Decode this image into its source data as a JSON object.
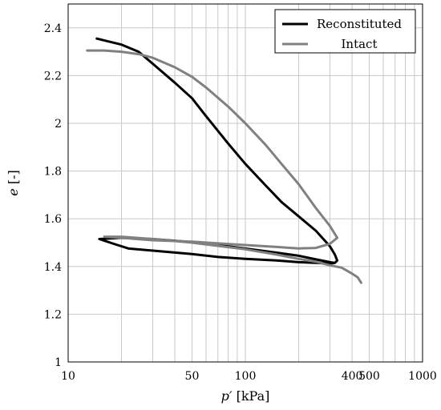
{
  "chart_data": {
    "type": "line",
    "title": "",
    "x_scale": "log",
    "xlim": [
      10,
      1000
    ],
    "ylim": [
      1,
      2.5
    ],
    "x_ticks": [
      10,
      50,
      100,
      400,
      500,
      1000
    ],
    "x_tick_labels": [
      "10",
      "50",
      "100",
      "400",
      "500",
      "1000"
    ],
    "y_ticks": [
      1,
      1.2,
      1.4,
      1.6,
      1.8,
      2,
      2.2,
      2.4
    ],
    "y_tick_labels": [
      "1",
      "1.2",
      "1.4",
      "1.6",
      "1.8",
      "2",
      "2.2",
      "2.4"
    ],
    "xlabel_var": "p′",
    "xlabel_unit": "[kPa]",
    "ylabel_var": "e",
    "ylabel_unit": "[-]",
    "grid": true,
    "legend_position": "top-right",
    "series": [
      {
        "name": "Reconstituted",
        "color": "#000000",
        "points": [
          [
            14.5,
            2.355
          ],
          [
            20,
            2.33
          ],
          [
            25,
            2.3
          ],
          [
            30,
            2.25
          ],
          [
            40,
            2.17
          ],
          [
            50,
            2.105
          ],
          [
            60,
            2.03
          ],
          [
            80,
            1.915
          ],
          [
            100,
            1.83
          ],
          [
            130,
            1.74
          ],
          [
            160,
            1.67
          ],
          [
            200,
            1.61
          ],
          [
            250,
            1.55
          ],
          [
            300,
            1.485
          ],
          [
            320,
            1.45
          ],
          [
            330,
            1.425
          ],
          [
            320,
            1.415
          ],
          [
            300,
            1.412
          ],
          [
            250,
            1.415
          ],
          [
            200,
            1.418
          ],
          [
            150,
            1.425
          ],
          [
            100,
            1.432
          ],
          [
            70,
            1.44
          ],
          [
            50,
            1.452
          ],
          [
            35,
            1.462
          ],
          [
            22,
            1.475
          ],
          [
            19,
            1.49
          ],
          [
            15,
            1.515
          ],
          [
            20,
            1.52
          ],
          [
            30,
            1.515
          ],
          [
            50,
            1.502
          ],
          [
            70,
            1.49
          ],
          [
            100,
            1.475
          ],
          [
            150,
            1.458
          ],
          [
            200,
            1.445
          ],
          [
            250,
            1.43
          ],
          [
            300,
            1.418
          ],
          [
            320,
            1.415
          ]
        ]
      },
      {
        "name": "Intact",
        "color": "#808080",
        "points": [
          [
            12.8,
            2.305
          ],
          [
            16,
            2.305
          ],
          [
            20,
            2.3
          ],
          [
            25,
            2.29
          ],
          [
            30,
            2.275
          ],
          [
            40,
            2.235
          ],
          [
            50,
            2.195
          ],
          [
            60,
            2.15
          ],
          [
            80,
            2.07
          ],
          [
            100,
            2.0
          ],
          [
            130,
            1.91
          ],
          [
            160,
            1.83
          ],
          [
            200,
            1.745
          ],
          [
            250,
            1.645
          ],
          [
            300,
            1.57
          ],
          [
            330,
            1.52
          ],
          [
            300,
            1.495
          ],
          [
            250,
            1.478
          ],
          [
            200,
            1.476
          ],
          [
            150,
            1.482
          ],
          [
            100,
            1.49
          ],
          [
            70,
            1.497
          ],
          [
            50,
            1.504
          ],
          [
            30,
            1.51
          ],
          [
            20,
            1.52
          ],
          [
            16,
            1.525
          ],
          [
            20,
            1.525
          ],
          [
            30,
            1.515
          ],
          [
            50,
            1.5
          ],
          [
            100,
            1.472
          ],
          [
            150,
            1.45
          ],
          [
            200,
            1.432
          ],
          [
            250,
            1.42
          ],
          [
            300,
            1.405
          ],
          [
            350,
            1.395
          ],
          [
            400,
            1.37
          ],
          [
            430,
            1.355
          ],
          [
            450,
            1.332
          ]
        ]
      }
    ]
  }
}
